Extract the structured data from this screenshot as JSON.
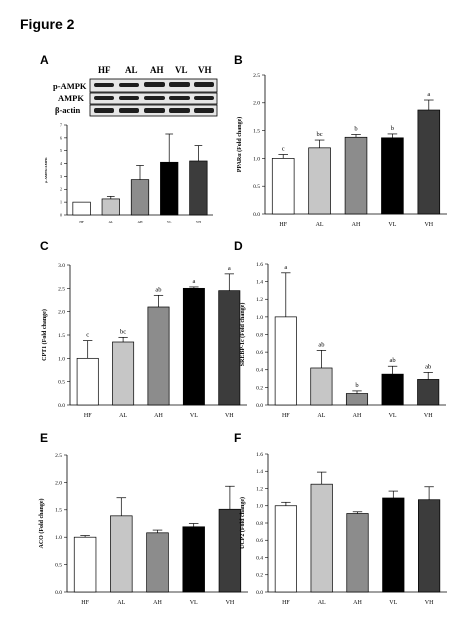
{
  "figure": {
    "title": "Figure 2"
  },
  "blot": {
    "lanes": [
      "HF",
      "AL",
      "AH",
      "VL",
      "VH"
    ],
    "rows": [
      "p-AMPK",
      "AMPK",
      "β-actin"
    ]
  },
  "panels": [
    {
      "letter": "A"
    },
    {
      "letter": "B"
    },
    {
      "letter": "C"
    },
    {
      "letter": "D"
    },
    {
      "letter": "E"
    },
    {
      "letter": "F"
    }
  ],
  "chart_data": [
    {
      "panel": "A",
      "type": "bar",
      "categories": [
        "HF",
        "AL",
        "AH",
        "VL",
        "VH"
      ],
      "values": [
        1.0,
        1.25,
        2.75,
        4.1,
        4.2
      ],
      "errors": [
        0.0,
        0.2,
        1.1,
        2.2,
        1.2
      ],
      "ylim": [
        0,
        7
      ],
      "yticks": [
        "0",
        "1",
        "2",
        "3",
        "4",
        "5",
        "6",
        "7"
      ],
      "ylabel": "p-AMPK/AMPK",
      "significance": [
        "",
        "",
        "",
        "",
        ""
      ],
      "colors": [
        "#ffffff",
        "#c6c6c6",
        "#8c8c8c",
        "#000000",
        "#3c3c3c"
      ]
    },
    {
      "panel": "B",
      "type": "bar",
      "categories": [
        "HF",
        "AL",
        "AH",
        "VL",
        "VH"
      ],
      "values": [
        1.0,
        1.19,
        1.38,
        1.37,
        1.87
      ],
      "errors": [
        0.07,
        0.14,
        0.05,
        0.07,
        0.18
      ],
      "ylim": [
        0,
        2.5
      ],
      "yticks": [
        "0.0",
        "0.5",
        "1.0",
        "1.5",
        "2.0",
        "2.5"
      ],
      "ylabel": "PPARα (Fold change)",
      "significance": [
        "c",
        "bc",
        "b",
        "b",
        "a"
      ],
      "colors": [
        "#ffffff",
        "#c6c6c6",
        "#8c8c8c",
        "#000000",
        "#3c3c3c"
      ]
    },
    {
      "panel": "C",
      "type": "bar",
      "categories": [
        "HF",
        "AL",
        "AH",
        "VL",
        "VH"
      ],
      "values": [
        1.0,
        1.35,
        2.1,
        2.5,
        2.45
      ],
      "errors": [
        0.38,
        0.1,
        0.25,
        0.03,
        0.36
      ],
      "ylim": [
        0,
        3.0
      ],
      "yticks": [
        "0.0",
        "0.5",
        "1.0",
        "1.5",
        "2.0",
        "2.5",
        "3.0"
      ],
      "ylabel": "CPT1 (Fold change)",
      "significance": [
        "c",
        "bc",
        "ab",
        "a",
        "a"
      ],
      "colors": [
        "#ffffff",
        "#c6c6c6",
        "#8c8c8c",
        "#000000",
        "#3c3c3c"
      ]
    },
    {
      "panel": "D",
      "type": "bar",
      "categories": [
        "HF",
        "AL",
        "AH",
        "VL",
        "VH"
      ],
      "values": [
        1.0,
        0.42,
        0.13,
        0.35,
        0.29
      ],
      "errors": [
        0.5,
        0.2,
        0.03,
        0.09,
        0.08
      ],
      "ylim": [
        0,
        1.6
      ],
      "yticks": [
        "0.0",
        "0.2",
        "0.4",
        "0.6",
        "0.8",
        "1.0",
        "1.2",
        "1.4",
        "1.6"
      ],
      "ylabel": "SREBP-1c (Fold change)",
      "significance": [
        "a",
        "ab",
        "b",
        "ab",
        "ab"
      ],
      "colors": [
        "#ffffff",
        "#c6c6c6",
        "#8c8c8c",
        "#000000",
        "#3c3c3c"
      ]
    },
    {
      "panel": "E",
      "type": "bar",
      "categories": [
        "HF",
        "AL",
        "AH",
        "VL",
        "VH"
      ],
      "values": [
        1.0,
        1.39,
        1.08,
        1.19,
        1.51
      ],
      "errors": [
        0.03,
        0.33,
        0.05,
        0.06,
        0.42
      ],
      "ylim": [
        0,
        2.5
      ],
      "yticks": [
        "0.0",
        "0.5",
        "1.0",
        "1.5",
        "2.0",
        "2.5"
      ],
      "ylabel": "ACO (Fold change)",
      "significance": [
        "",
        "",
        "",
        "",
        ""
      ],
      "colors": [
        "#ffffff",
        "#c6c6c6",
        "#8c8c8c",
        "#000000",
        "#3c3c3c"
      ]
    },
    {
      "panel": "F",
      "type": "bar",
      "categories": [
        "HF",
        "AL",
        "AH",
        "VL",
        "VH"
      ],
      "values": [
        1.0,
        1.25,
        0.91,
        1.09,
        1.07
      ],
      "errors": [
        0.04,
        0.14,
        0.02,
        0.08,
        0.15
      ],
      "ylim": [
        0,
        1.6
      ],
      "yticks": [
        "0.0",
        "0.2",
        "0.4",
        "0.6",
        "0.8",
        "1.0",
        "1.2",
        "1.4",
        "1.6"
      ],
      "ylabel": "UCP2 (Fold change)",
      "significance": [
        "",
        "",
        "",
        "",
        ""
      ],
      "colors": [
        "#ffffff",
        "#c6c6c6",
        "#8c8c8c",
        "#000000",
        "#3c3c3c"
      ]
    }
  ]
}
